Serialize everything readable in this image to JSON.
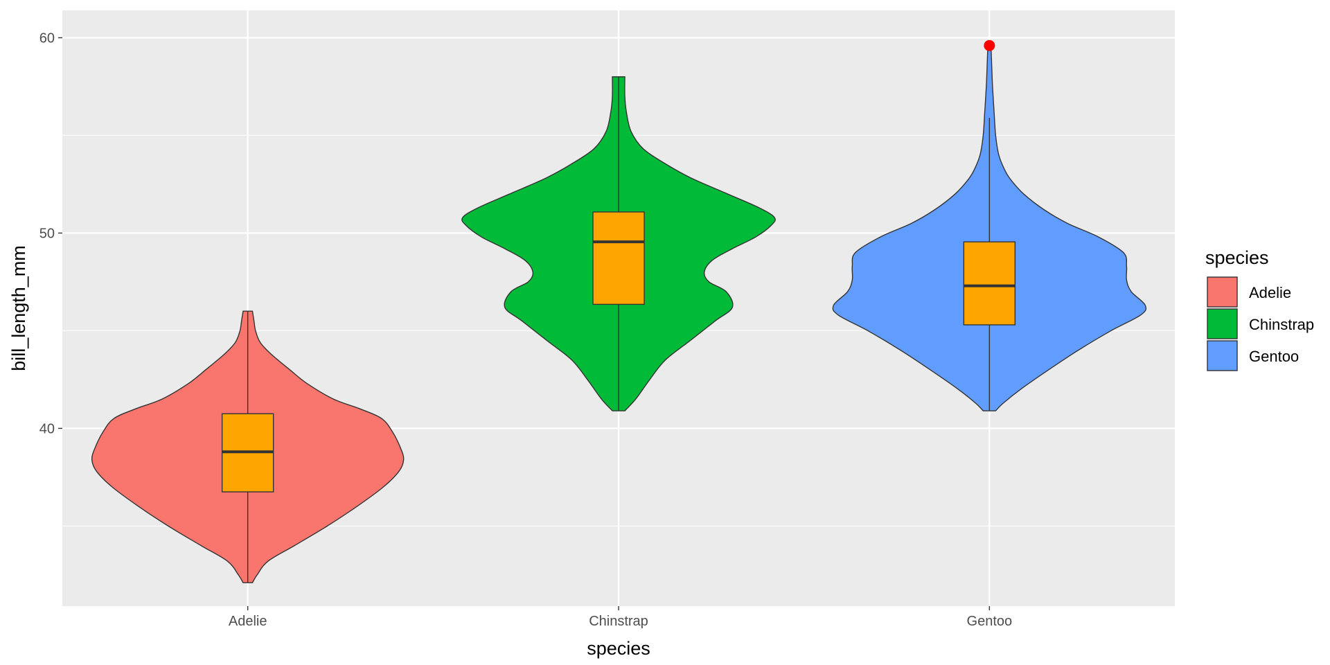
{
  "chart_data": {
    "type": "violin",
    "title": "",
    "xlabel": "species",
    "ylabel": "bill_length_mm",
    "categories": [
      "Adelie",
      "Chinstrap",
      "Gentoo"
    ],
    "ylim": [
      30.9,
      61.4
    ],
    "y_ticks": [
      40,
      50,
      60
    ],
    "y_minor_ticks": [
      35,
      45,
      55
    ],
    "grid": true,
    "legend": {
      "title": "species",
      "position": "right",
      "entries": [
        "Adelie",
        "Chinstrap",
        "Gentoo"
      ]
    },
    "colors": {
      "Adelie": "#F8766D",
      "Chinstrap": "#00BA38",
      "Gentoo": "#619CFF",
      "box_fill": "#FFA500",
      "outlier": "#FF0000",
      "panel": "#EBEBEB",
      "grid": "#FFFFFF"
    },
    "series": [
      {
        "category": "Adelie",
        "y_range": [
          32.1,
          46.0
        ],
        "box": {
          "lower_whisker": 32.1,
          "q1": 36.75,
          "median": 38.8,
          "q3": 40.75,
          "upper_whisker": 46.0
        },
        "outliers": [],
        "density_profile": [
          [
            32.1,
            0.03
          ],
          [
            32.5,
            0.06
          ],
          [
            33.2,
            0.13
          ],
          [
            34.0,
            0.3
          ],
          [
            35.0,
            0.51
          ],
          [
            36.0,
            0.7
          ],
          [
            37.0,
            0.87
          ],
          [
            37.8,
            0.97
          ],
          [
            38.4,
            1.0
          ],
          [
            39.0,
            0.98
          ],
          [
            39.8,
            0.93
          ],
          [
            40.5,
            0.86
          ],
          [
            41.0,
            0.72
          ],
          [
            41.5,
            0.55
          ],
          [
            42.3,
            0.38
          ],
          [
            43.0,
            0.27
          ],
          [
            43.8,
            0.15
          ],
          [
            44.4,
            0.08
          ],
          [
            45.0,
            0.05
          ],
          [
            45.5,
            0.04
          ],
          [
            46.0,
            0.03
          ]
        ]
      },
      {
        "category": "Chinstrap",
        "y_range": [
          40.9,
          58.0
        ],
        "box": {
          "lower_whisker": 40.9,
          "q1": 46.35,
          "median": 49.55,
          "q3": 51.08,
          "upper_whisker": 58.0
        },
        "outliers": [],
        "density_profile": [
          [
            40.9,
            0.04
          ],
          [
            41.5,
            0.11
          ],
          [
            42.5,
            0.2
          ],
          [
            43.5,
            0.3
          ],
          [
            44.5,
            0.46
          ],
          [
            45.5,
            0.62
          ],
          [
            46.2,
            0.73
          ],
          [
            47.0,
            0.69
          ],
          [
            47.5,
            0.58
          ],
          [
            48.0,
            0.55
          ],
          [
            48.6,
            0.6
          ],
          [
            49.2,
            0.73
          ],
          [
            49.8,
            0.88
          ],
          [
            50.4,
            0.98
          ],
          [
            50.8,
            1.0
          ],
          [
            51.3,
            0.9
          ],
          [
            52.0,
            0.7
          ],
          [
            52.8,
            0.47
          ],
          [
            53.5,
            0.31
          ],
          [
            54.3,
            0.16
          ],
          [
            55.2,
            0.08
          ],
          [
            56.2,
            0.05
          ],
          [
            57.0,
            0.04
          ],
          [
            58.0,
            0.04
          ]
        ]
      },
      {
        "category": "Gentoo",
        "y_range": [
          40.9,
          59.6
        ],
        "box": {
          "lower_whisker": 40.9,
          "q1": 45.3,
          "median": 47.3,
          "q3": 49.55,
          "upper_whisker": 55.9
        },
        "outliers": [
          59.6
        ],
        "density_profile": [
          [
            40.9,
            0.04
          ],
          [
            41.3,
            0.09
          ],
          [
            42.0,
            0.2
          ],
          [
            43.0,
            0.38
          ],
          [
            44.0,
            0.57
          ],
          [
            45.0,
            0.78
          ],
          [
            45.8,
            0.97
          ],
          [
            46.3,
            1.0
          ],
          [
            47.0,
            0.91
          ],
          [
            47.6,
            0.88
          ],
          [
            48.3,
            0.88
          ],
          [
            49.0,
            0.86
          ],
          [
            49.8,
            0.7
          ],
          [
            50.5,
            0.5
          ],
          [
            51.2,
            0.35
          ],
          [
            52.0,
            0.22
          ],
          [
            52.7,
            0.14
          ],
          [
            53.2,
            0.1
          ],
          [
            54.0,
            0.06
          ],
          [
            55.0,
            0.04
          ],
          [
            56.2,
            0.03
          ],
          [
            57.5,
            0.02
          ],
          [
            58.5,
            0.015
          ],
          [
            59.6,
            0.01
          ]
        ]
      }
    ]
  }
}
